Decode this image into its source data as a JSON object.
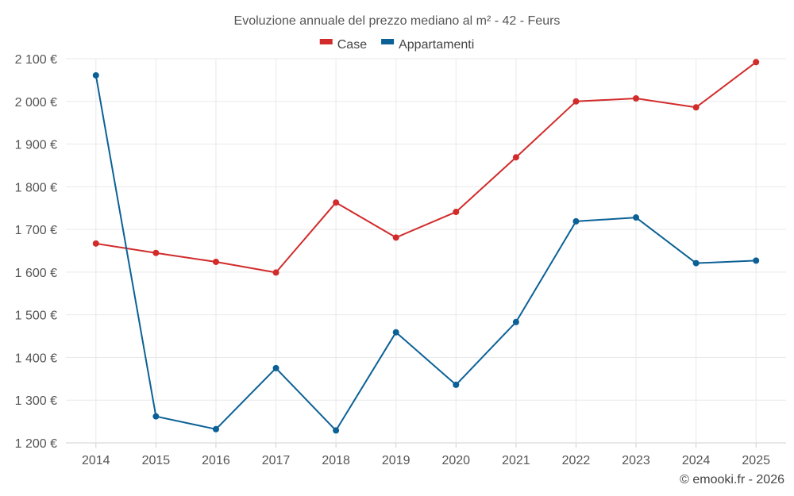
{
  "chart_data": {
    "type": "line",
    "title": "Evoluzione annuale del prezzo mediano al m² - 42 - Feurs",
    "categories": [
      "2014",
      "2015",
      "2016",
      "2017",
      "2018",
      "2019",
      "2020",
      "2021",
      "2022",
      "2023",
      "2024",
      "2025"
    ],
    "series": [
      {
        "name": "Case",
        "color": "#d22b2b",
        "values": [
          1667,
          1645,
          1624,
          1599,
          1763,
          1681,
          1741,
          1869,
          2000,
          2007,
          1986,
          2092
        ]
      },
      {
        "name": "Appartamenti",
        "color": "#0b6196",
        "values": [
          2061,
          1262,
          1232,
          1375,
          1229,
          1459,
          1336,
          1483,
          1719,
          1728,
          1621,
          1627
        ]
      }
    ],
    "ylim": [
      1200,
      2100
    ],
    "yticks": [
      1200,
      1300,
      1400,
      1500,
      1600,
      1700,
      1800,
      1900,
      2000,
      2100
    ],
    "ytick_labels": [
      "1 200 €",
      "1 300 €",
      "1 400 €",
      "1 500 €",
      "1 600 €",
      "1 700 €",
      "1 800 €",
      "1 900 €",
      "2 000 €",
      "2 100 €"
    ],
    "xlabel": "",
    "ylabel": "",
    "grid": true,
    "legend_position": "top-center"
  },
  "credit": "© emooki.fr - 2026"
}
